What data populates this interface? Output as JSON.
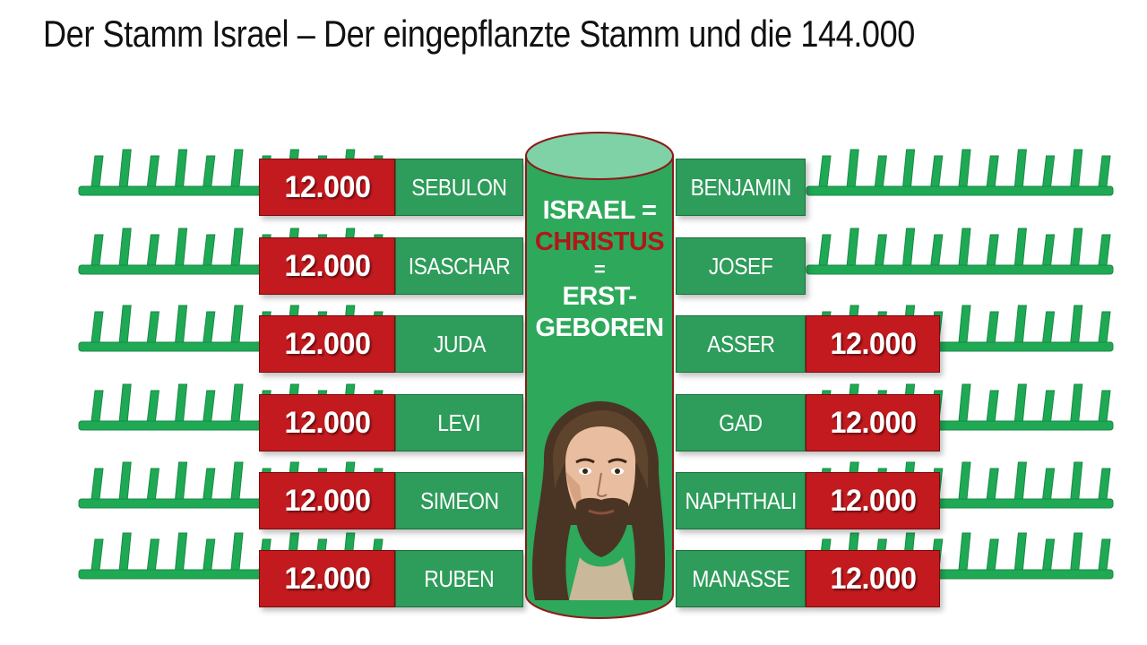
{
  "title": "Der Stamm Israel – Der eingepflanzte Stamm und die 144.000",
  "colors": {
    "green": "#2e9c5a",
    "rail_green": "#1fa955",
    "red": "#c21a1e",
    "pillar": "#2ea85b",
    "pillar_top": "#7fd1a6",
    "christus_red": "#b01818"
  },
  "left_tribes": [
    {
      "count": "12.000",
      "name": "SEBULON"
    },
    {
      "count": "12.000",
      "name": "ISASCHAR"
    },
    {
      "count": "12.000",
      "name": "JUDA"
    },
    {
      "count": "12.000",
      "name": "LEVI"
    },
    {
      "count": "12.000",
      "name": "SIMEON"
    },
    {
      "count": "12.000",
      "name": "RUBEN"
    }
  ],
  "right_tribes": [
    {
      "name": "BENJAMIN",
      "count": ""
    },
    {
      "name": "JOSEF",
      "count": ""
    },
    {
      "name": "ASSER",
      "count": "12.000"
    },
    {
      "name": "GAD",
      "count": "12.000"
    },
    {
      "name": "NAPHTHALI",
      "count": "12.000"
    },
    {
      "name": "MANASSE",
      "count": "12.000"
    }
  ],
  "pillar": {
    "line1": "ISRAEL =",
    "line2": "CHRISTUS",
    "line3": "=",
    "line4": "ERST-",
    "line5": "GEBOREN",
    "line6": "="
  },
  "image": {
    "icon": "jesus-portrait"
  }
}
